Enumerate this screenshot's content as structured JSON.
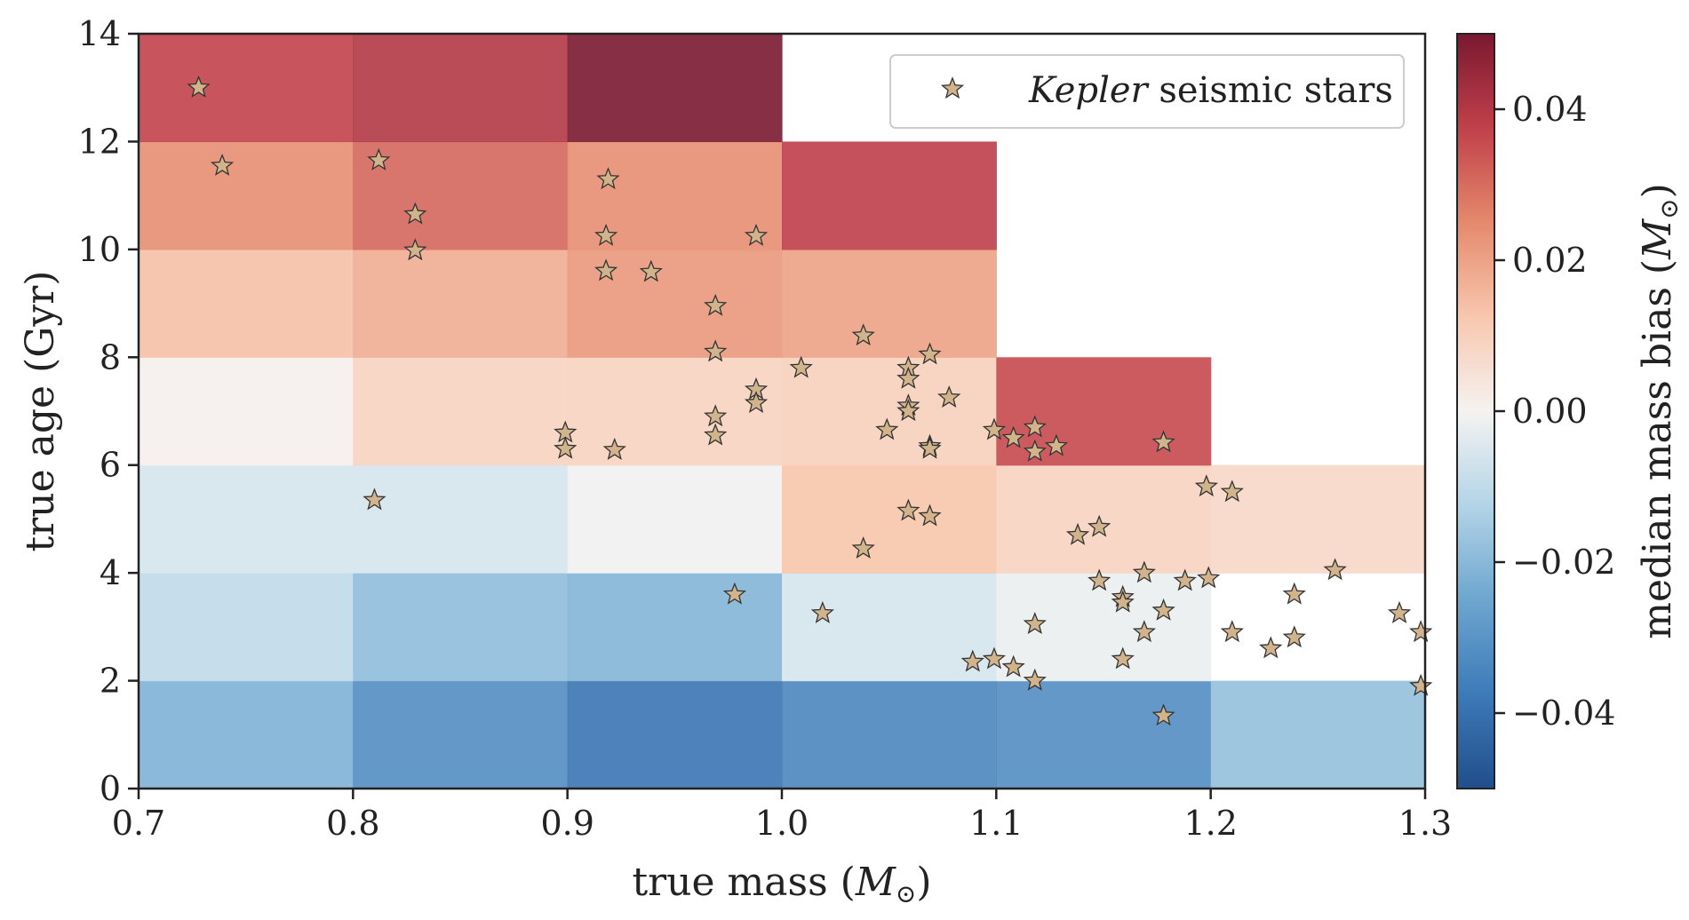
{
  "chart_data": {
    "type": "heatmap",
    "xlabel": "true mass (",
    "xlabel_symbol": "M",
    "xlabel_sub": "⊙",
    "xlabel_close": ")",
    "ylabel": "true age (Gyr)",
    "colorbar_label": "median mass bias (",
    "colorbar_symbol": "M",
    "colorbar_sub": "⊙",
    "colorbar_close": ")",
    "xlim": [
      0.7,
      1.3
    ],
    "ylim": [
      0,
      14
    ],
    "clim": [
      -0.05,
      0.05
    ],
    "colormap": "RdBu_r",
    "x_ticks": [
      0.7,
      0.8,
      0.9,
      1.0,
      1.1,
      1.2,
      1.3
    ],
    "x_tick_labels": [
      "0.7",
      "0.8",
      "0.9",
      "1.0",
      "1.1",
      "1.2",
      "1.3"
    ],
    "y_ticks": [
      0,
      2,
      4,
      6,
      8,
      10,
      12,
      14
    ],
    "y_tick_labels": [
      "0",
      "2",
      "4",
      "6",
      "8",
      "10",
      "12",
      "14"
    ],
    "colorbar_ticks": [
      0.04,
      0.02,
      0.0,
      -0.02,
      -0.04
    ],
    "colorbar_tick_labels": [
      "0.04",
      "0.02",
      "0.00",
      "−0.02",
      "−0.04"
    ],
    "x_edges": [
      0.7,
      0.8,
      0.9,
      1.0,
      1.1,
      1.2,
      1.3
    ],
    "y_edges": [
      0,
      2,
      4,
      6,
      8,
      10,
      12,
      14
    ],
    "bias_grid": [
      [
        -0.022,
        -0.032,
        -0.039,
        -0.034,
        -0.032,
        -0.018
      ],
      [
        -0.01,
        -0.019,
        -0.021,
        -0.006,
        -0.002,
        null
      ],
      [
        -0.006,
        -0.006,
        -0.001,
        0.013,
        0.009,
        0.008
      ],
      [
        0.001,
        0.009,
        0.009,
        0.01,
        0.036,
        null
      ],
      [
        0.014,
        0.018,
        0.022,
        0.02,
        null,
        null
      ],
      [
        0.024,
        0.031,
        0.024,
        0.038,
        null,
        null
      ],
      [
        0.037,
        0.04,
        0.052,
        null,
        null,
        null
      ]
    ],
    "legend": {
      "label_italic": "Kepler",
      "label_rest": " seismic stars",
      "location": "upper right"
    },
    "star_color": "#d2b48c",
    "stars": [
      {
        "x": 0.728,
        "y": 13.0
      },
      {
        "x": 0.739,
        "y": 11.55
      },
      {
        "x": 0.812,
        "y": 11.65
      },
      {
        "x": 0.829,
        "y": 10.65
      },
      {
        "x": 0.829,
        "y": 9.98
      },
      {
        "x": 0.81,
        "y": 5.35
      },
      {
        "x": 0.919,
        "y": 11.3
      },
      {
        "x": 0.918,
        "y": 10.25
      },
      {
        "x": 0.918,
        "y": 9.6
      },
      {
        "x": 0.939,
        "y": 9.58
      },
      {
        "x": 0.988,
        "y": 10.25
      },
      {
        "x": 0.969,
        "y": 8.95
      },
      {
        "x": 0.969,
        "y": 8.1
      },
      {
        "x": 0.899,
        "y": 6.6
      },
      {
        "x": 0.899,
        "y": 6.3
      },
      {
        "x": 0.922,
        "y": 6.28
      },
      {
        "x": 0.969,
        "y": 6.9
      },
      {
        "x": 0.969,
        "y": 6.55
      },
      {
        "x": 0.988,
        "y": 7.4
      },
      {
        "x": 0.988,
        "y": 7.15
      },
      {
        "x": 0.978,
        "y": 3.6
      },
      {
        "x": 1.009,
        "y": 7.8
      },
      {
        "x": 1.038,
        "y": 8.4
      },
      {
        "x": 1.059,
        "y": 7.8
      },
      {
        "x": 1.059,
        "y": 7.6
      },
      {
        "x": 1.069,
        "y": 8.05
      },
      {
        "x": 1.059,
        "y": 7.1
      },
      {
        "x": 1.059,
        "y": 7.0
      },
      {
        "x": 1.078,
        "y": 7.25
      },
      {
        "x": 1.049,
        "y": 6.65
      },
      {
        "x": 1.069,
        "y": 6.35
      },
      {
        "x": 1.069,
        "y": 6.3
      },
      {
        "x": 1.059,
        "y": 5.15
      },
      {
        "x": 1.069,
        "y": 5.05
      },
      {
        "x": 1.038,
        "y": 4.45
      },
      {
        "x": 1.019,
        "y": 3.25
      },
      {
        "x": 1.099,
        "y": 6.65
      },
      {
        "x": 1.108,
        "y": 6.5
      },
      {
        "x": 1.118,
        "y": 6.7
      },
      {
        "x": 1.118,
        "y": 6.25
      },
      {
        "x": 1.128,
        "y": 6.35
      },
      {
        "x": 1.178,
        "y": 6.42
      },
      {
        "x": 1.138,
        "y": 4.7
      },
      {
        "x": 1.148,
        "y": 4.85
      },
      {
        "x": 1.148,
        "y": 3.85
      },
      {
        "x": 1.159,
        "y": 3.55
      },
      {
        "x": 1.159,
        "y": 3.45
      },
      {
        "x": 1.169,
        "y": 4.0
      },
      {
        "x": 1.178,
        "y": 3.3
      },
      {
        "x": 1.188,
        "y": 3.85
      },
      {
        "x": 1.118,
        "y": 3.05
      },
      {
        "x": 1.169,
        "y": 2.9
      },
      {
        "x": 1.159,
        "y": 2.4
      },
      {
        "x": 1.089,
        "y": 2.35
      },
      {
        "x": 1.099,
        "y": 2.4
      },
      {
        "x": 1.108,
        "y": 2.25
      },
      {
        "x": 1.118,
        "y": 2.0
      },
      {
        "x": 1.178,
        "y": 1.35
      },
      {
        "x": 1.198,
        "y": 5.6
      },
      {
        "x": 1.21,
        "y": 5.5
      },
      {
        "x": 1.199,
        "y": 3.9
      },
      {
        "x": 1.21,
        "y": 2.9
      },
      {
        "x": 1.228,
        "y": 2.6
      },
      {
        "x": 1.239,
        "y": 3.6
      },
      {
        "x": 1.239,
        "y": 2.8
      },
      {
        "x": 1.258,
        "y": 4.05
      },
      {
        "x": 1.288,
        "y": 3.25
      },
      {
        "x": 1.298,
        "y": 2.9
      },
      {
        "x": 1.298,
        "y": 1.9
      }
    ]
  }
}
